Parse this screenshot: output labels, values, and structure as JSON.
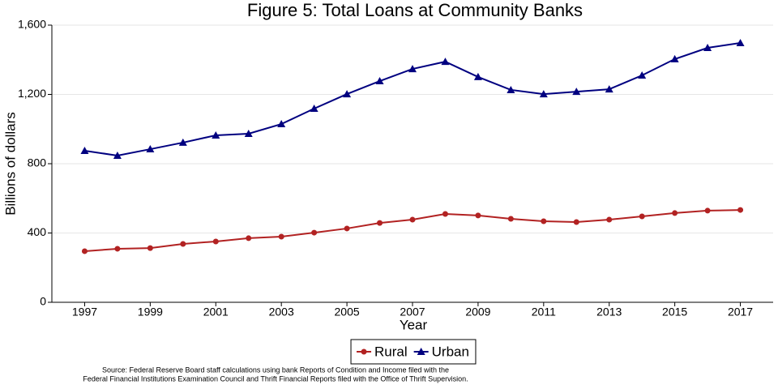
{
  "chart_data": {
    "type": "line",
    "title": "Figure 5: Total Loans at Community Banks",
    "x_label": "Year",
    "y_label": "Billions of dollars",
    "x": [
      1997,
      1998,
      1999,
      2000,
      2001,
      2002,
      2003,
      2004,
      2005,
      2006,
      2007,
      2008,
      2009,
      2010,
      2011,
      2012,
      2013,
      2014,
      2015,
      2016,
      2017
    ],
    "series": [
      {
        "name": "Rural",
        "color": "#b22222",
        "marker": "circle",
        "values": [
          295,
          309,
          313,
          337,
          351,
          370,
          379,
          402,
          426,
          458,
          477,
          510,
          501,
          482,
          468,
          463,
          477,
          496,
          515,
          529,
          533
        ]
      },
      {
        "name": "Urban",
        "color": "#000080",
        "marker": "triangle",
        "values": [
          875,
          847,
          884,
          922,
          964,
          973,
          1029,
          1118,
          1202,
          1277,
          1347,
          1389,
          1301,
          1226,
          1202,
          1216,
          1230,
          1310,
          1404,
          1469,
          1497
        ]
      }
    ],
    "xlim": [
      1996,
      2018
    ],
    "xticks": [
      1997,
      1999,
      2001,
      2003,
      2005,
      2007,
      2009,
      2011,
      2013,
      2015,
      2017
    ],
    "ylim": [
      0,
      1600
    ],
    "yticks": [
      0,
      400,
      800,
      {
        "value": 1200,
        "label": "1,200"
      },
      {
        "value": 1600,
        "label": "1,600"
      }
    ],
    "grid": true,
    "legend": "bottom",
    "source": [
      "Source: Federal Reserve Board staff calculations using bank Reports of Condition and Income filed with the",
      "Federal Financial Institutions Examination Council and Thrift Financial Reports filed with the Office of Thrift Supervision."
    ]
  }
}
